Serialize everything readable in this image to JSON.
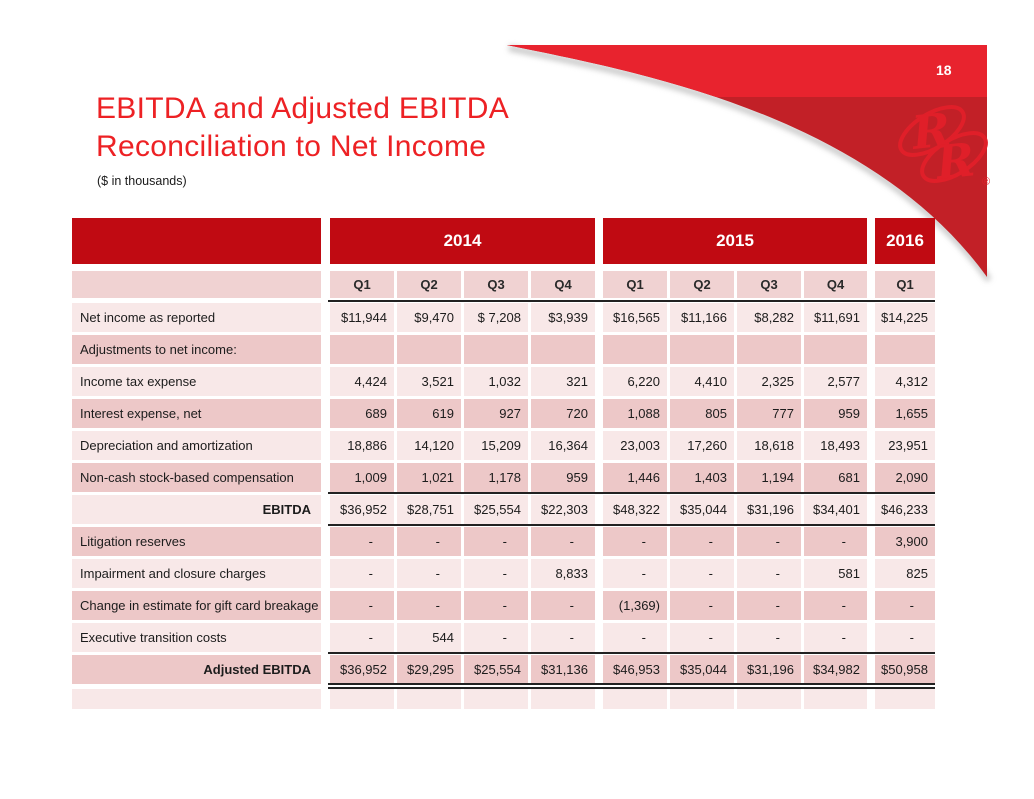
{
  "page": {
    "number": "18"
  },
  "title": {
    "line1": "EBITDA and Adjusted EBITDA",
    "line2": "Reconciliation to Net Income",
    "subtitle": "($ in thousands)"
  },
  "logo": {
    "name": "red-robin-logo",
    "letters": [
      "R",
      "R"
    ],
    "registered": "®"
  },
  "colors": {
    "title_red": "#ed2124",
    "header_red": "#c00a12",
    "swoosh_bright": "#e8232e",
    "swoosh_dark": "#c22027",
    "logo_red": "#e01f29",
    "row_light": "#f8e8e8",
    "row_dark": "#edc8c8",
    "quarter_row_pink": "#f0d2d2"
  },
  "table": {
    "year_groups": [
      {
        "label": "2014",
        "quarters": [
          "Q1",
          "Q2",
          "Q3",
          "Q4"
        ]
      },
      {
        "label": "2015",
        "quarters": [
          "Q1",
          "Q2",
          "Q3",
          "Q4"
        ]
      },
      {
        "label": "2016",
        "quarters": [
          "Q1"
        ]
      }
    ],
    "rows": [
      {
        "label": "Net income as reported",
        "bold": false,
        "values": [
          "$11,944",
          "$9,470",
          "$ 7,208",
          "$3,939",
          "$16,565",
          "$11,166",
          "$8,282",
          "$11,691",
          "$14,225"
        ]
      },
      {
        "label": "Adjustments to net income:",
        "bold": false,
        "values": [
          "",
          "",
          "",
          "",
          "",
          "",
          "",
          "",
          ""
        ]
      },
      {
        "label": "Income tax expense",
        "bold": false,
        "values": [
          "4,424",
          "3,521",
          "1,032",
          "321",
          "6,220",
          "4,410",
          "2,325",
          "2,577",
          "4,312"
        ]
      },
      {
        "label": "Interest expense, net",
        "bold": false,
        "values": [
          "689",
          "619",
          "927",
          "720",
          "1,088",
          "805",
          "777",
          "959",
          "1,655"
        ]
      },
      {
        "label": "Depreciation and amortization",
        "bold": false,
        "values": [
          "18,886",
          "14,120",
          "15,209",
          "16,364",
          "23,003",
          "17,260",
          "18,618",
          "18,493",
          "23,951"
        ]
      },
      {
        "label": "Non-cash stock-based compensation",
        "bold": false,
        "values": [
          "1,009",
          "1,021",
          "1,178",
          "959",
          "1,446",
          "1,403",
          "1,194",
          "681",
          "2,090"
        ]
      },
      {
        "label": "EBITDA",
        "bold": true,
        "values": [
          "$36,952",
          "$28,751",
          "$25,554",
          "$22,303",
          "$48,322",
          "$35,044",
          "$31,196",
          "$34,401",
          "$46,233"
        ]
      },
      {
        "label": "Litigation reserves",
        "bold": false,
        "values": [
          "-",
          "-",
          "-",
          "-",
          "-",
          "-",
          "-",
          "-",
          "3,900"
        ]
      },
      {
        "label": "Impairment and closure charges",
        "bold": false,
        "values": [
          "-",
          "-",
          "-",
          "8,833",
          "-",
          "-",
          "-",
          "581",
          "825"
        ]
      },
      {
        "label": "Change in estimate for gift card breakage",
        "bold": false,
        "values": [
          "-",
          "-",
          "-",
          "-",
          "(1,369)",
          "-",
          "-",
          "-",
          "-"
        ]
      },
      {
        "label": "Executive transition costs",
        "bold": false,
        "values": [
          "-",
          "544",
          "-",
          "-",
          "-",
          "-",
          "-",
          "-",
          "-"
        ]
      },
      {
        "label": "Adjusted EBITDA",
        "bold": true,
        "values": [
          "$36,952",
          "$29,295",
          "$25,554",
          "$31,136",
          "$46,953",
          "$35,044",
          "$31,196",
          "$34,982",
          "$50,958"
        ]
      },
      {
        "label": "",
        "bold": false,
        "values": [
          "",
          "",
          "",
          "",
          "",
          "",
          "",
          "",
          ""
        ]
      }
    ]
  }
}
